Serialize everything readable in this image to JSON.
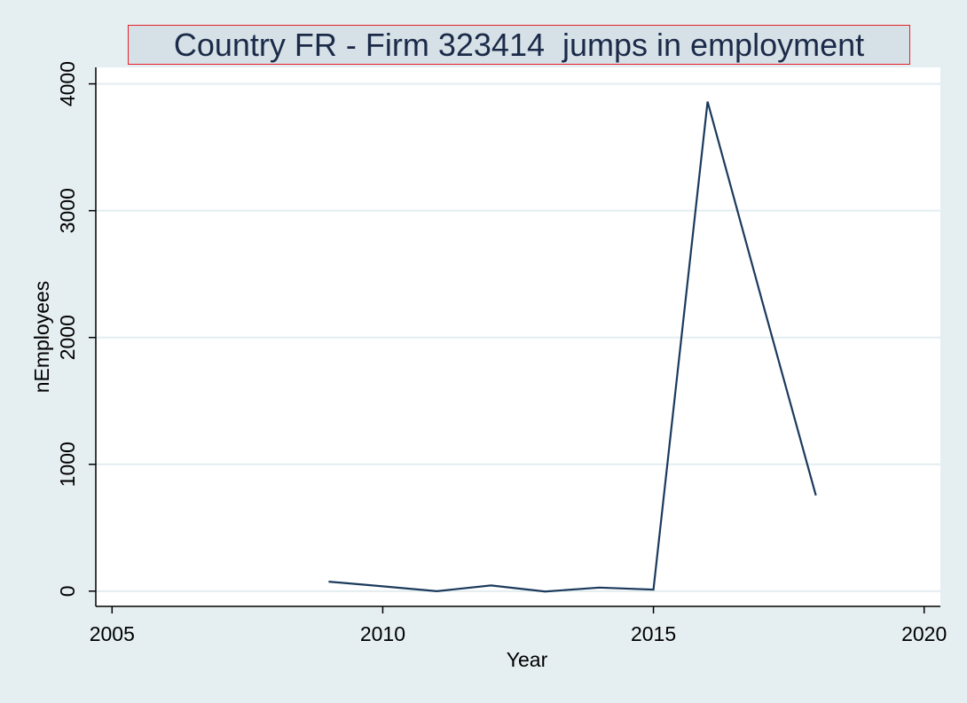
{
  "chart_data": {
    "type": "line",
    "title": "Country FR - Firm 323414  jumps in employment",
    "xlabel": "Year",
    "ylabel": "nEmployees",
    "xlim": [
      2004.7,
      2020.3
    ],
    "ylim": [
      -120,
      4130
    ],
    "xticks": [
      2005,
      2010,
      2015,
      2020
    ],
    "yticks": [
      0,
      1000,
      2000,
      3000,
      4000
    ],
    "grid": true,
    "series": [
      {
        "x": [
          2009,
          2010,
          2011,
          2012,
          2013,
          2014,
          2015,
          2016,
          2017,
          2018
        ],
        "y": [
          75,
          38,
          0,
          45,
          -3,
          28,
          12,
          3860,
          2300,
          755
        ]
      }
    ],
    "colors": {
      "background": "#e5eef1",
      "plot_area": "#ffffff",
      "line": "#1b3a5c",
      "grid": "#e3eef1",
      "title_box": "#d6e1e7",
      "title_border": "#e8202a",
      "title_text": "#1b2a48"
    }
  }
}
